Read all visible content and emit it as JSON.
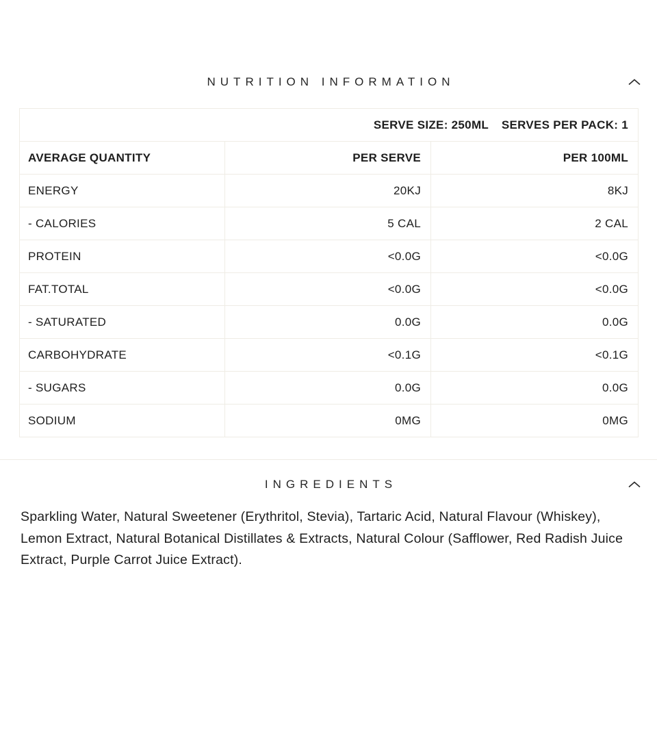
{
  "theme": {
    "background": "#ffffff",
    "text_color": "#1e1e1e",
    "border_color": "#efece5"
  },
  "nutrition_section": {
    "title": "NUTRITION INFORMATION",
    "chevron_icon": "chevron-up",
    "table": {
      "serve_size": "SERVE SIZE: 250ML",
      "serves_per_pack": "SERVES PER PACK: 1",
      "columns": [
        "AVERAGE QUANTITY",
        "PER SERVE",
        "PER 100ML"
      ],
      "rows": [
        {
          "label": "ENERGY",
          "per_serve": "20KJ",
          "per_100ml": "8KJ"
        },
        {
          "label": "- CALORIES",
          "per_serve": "5 CAL",
          "per_100ml": "2 CAL"
        },
        {
          "label": "PROTEIN",
          "per_serve": "<0.0G",
          "per_100ml": "<0.0G"
        },
        {
          "label": "FAT.TOTAL",
          "per_serve": "<0.0G",
          "per_100ml": "<0.0G"
        },
        {
          "label": "- SATURATED",
          "per_serve": "0.0G",
          "per_100ml": "0.0G"
        },
        {
          "label": "CARBOHYDRATE",
          "per_serve": "<0.1G",
          "per_100ml": "<0.1G"
        },
        {
          "label": "- SUGARS",
          "per_serve": "0.0G",
          "per_100ml": "0.0G"
        },
        {
          "label": "SODIUM",
          "per_serve": "0MG",
          "per_100ml": "0MG"
        }
      ]
    }
  },
  "ingredients_section": {
    "title": "INGREDIENTS",
    "chevron_icon": "chevron-up",
    "text": "Sparkling Water, Natural Sweetener (Erythritol, Stevia), Tartaric Acid, Natural Flavour (Whiskey), Lemon Extract, Natural Botanical Distillates & Extracts, Natural Colour (Safflower, Red Radish Juice Extract, Purple Carrot Juice Extract)."
  }
}
